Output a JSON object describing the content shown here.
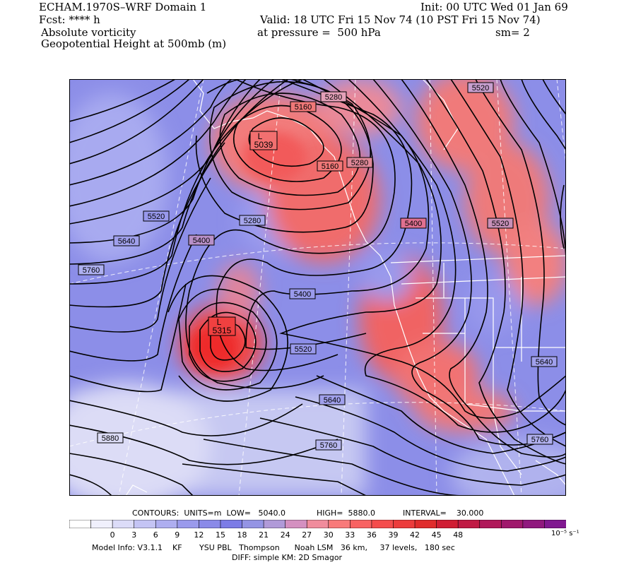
{
  "header": {
    "model_title": "ECHAM.1970S–WRF Domain 1",
    "fcst": "Fcst: **** h",
    "field1": "Absolute vorticity",
    "field2": "Geopotential Height at 500mb (m)",
    "init": "Init: 00 UTC Wed 01 Jan 69",
    "valid": "Valid: 18 UTC Fri 15 Nov 74 (10 PST Fri 15 Nov 74)",
    "pressure": "at pressure =  500 hPa",
    "smooth": "sm= 2"
  },
  "map": {
    "low_marker": "L",
    "lows": [
      {
        "marker": "L",
        "value": "5039"
      },
      {
        "marker": "L",
        "value": "5315"
      }
    ],
    "contour_labels": [
      "5160",
      "5280",
      "5520",
      "5160",
      "5280",
      "5520",
      "5640",
      "5400",
      "5280",
      "5400",
      "5520",
      "5760",
      "5400",
      "5520",
      "5640",
      "5640",
      "5880",
      "5760",
      "5760"
    ]
  },
  "contour_info": {
    "contours": "CONTOURS:  UNITS=m  LOW=   5040.0",
    "high": "HIGH=  5880.0",
    "interval": "INTERVAL=    30.000"
  },
  "colorbar": {
    "ticks": [
      "0",
      "3",
      "6",
      "9",
      "12",
      "15",
      "18",
      "21",
      "24",
      "27",
      "30",
      "33",
      "36",
      "39",
      "42",
      "45",
      "48"
    ],
    "unit_label": "10⁻⁵ s⁻¹",
    "colors": [
      "#ffffff",
      "#f0f0fc",
      "#dcdcf8",
      "#c4c4f4",
      "#aeaef0",
      "#9a9aec",
      "#8a8ae8",
      "#7c7ce6",
      "#9494e4",
      "#b09ad8",
      "#d490c0",
      "#f08c9c",
      "#f87a7a",
      "#f86262",
      "#f44c4c",
      "#ec3c3c",
      "#e02c2c",
      "#d01e34",
      "#c01a44",
      "#b0185a",
      "#a0186c",
      "#90187e",
      "#801890"
    ]
  },
  "footer": {
    "model_info": "Model Info: V3.1.1    KF       YSU PBL   Thompson      Noah LSM   36 km,     37 levels,   180 sec",
    "diff": "DIFF: simple KM: 2D Smagor"
  }
}
